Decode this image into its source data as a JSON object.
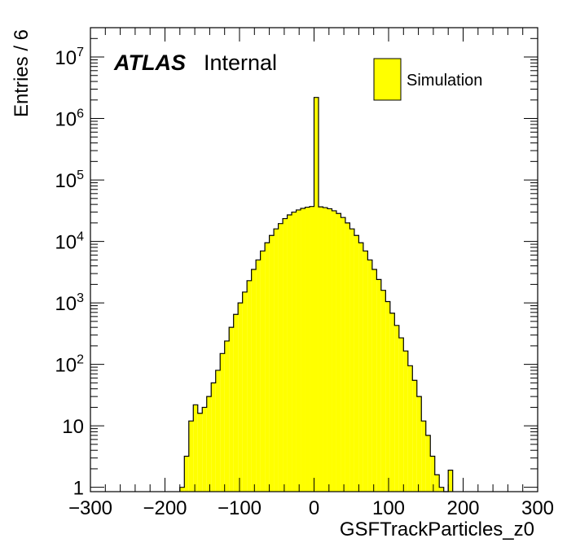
{
  "chart_data": {
    "type": "bar",
    "title": "",
    "xlabel": "GSFTrackParticles_z0",
    "ylabel": "Entries / 6",
    "xlim": [
      -300,
      300
    ],
    "ylim": [
      0.85,
      30000000
    ],
    "yscale": "log",
    "bin_width": 6,
    "fill_color": "#ffff00",
    "line_color": "#000000",
    "x_ticks": [
      -300,
      -200,
      -100,
      0,
      100,
      200,
      300
    ],
    "x_tick_labels": [
      "−300",
      "−200",
      "−100",
      "0",
      "100",
      "200",
      "300"
    ],
    "y_ticks": [
      {
        "value": 1,
        "base": "1",
        "exp": ""
      },
      {
        "value": 10,
        "base": "10",
        "exp": ""
      },
      {
        "value": 100,
        "base": "10",
        "exp": "2"
      },
      {
        "value": 1000,
        "base": "10",
        "exp": "3"
      },
      {
        "value": 10000,
        "base": "10",
        "exp": "4"
      },
      {
        "value": 100000,
        "base": "10",
        "exp": "5"
      },
      {
        "value": 1000000,
        "base": "10",
        "exp": "6"
      },
      {
        "value": 10000000,
        "base": "10",
        "exp": "7"
      }
    ],
    "bin_edges_start": -180,
    "values": [
      1,
      3.2,
      12,
      22,
      16,
      20,
      30,
      50,
      80,
      150,
      240,
      400,
      650,
      1000,
      1500,
      2300,
      3500,
      5000,
      7000,
      9500,
      12500,
      16000,
      19500,
      23500,
      27000,
      30000,
      32500,
      34500,
      36000,
      37000,
      2200000,
      36500,
      35500,
      34000,
      31500,
      28500,
      24500,
      20000,
      16000,
      12500,
      9500,
      7000,
      5000,
      3500,
      2400,
      1600,
      1050,
      680,
      430,
      270,
      165,
      95,
      55,
      30,
      12,
      7,
      3.2,
      1.6,
      1,
      0,
      1.9
    ],
    "series": [
      {
        "name": "Simulation",
        "values": "see values"
      }
    ],
    "label_atlas": "ATLAS",
    "label_status": "Internal",
    "legend_position": "top-right"
  }
}
